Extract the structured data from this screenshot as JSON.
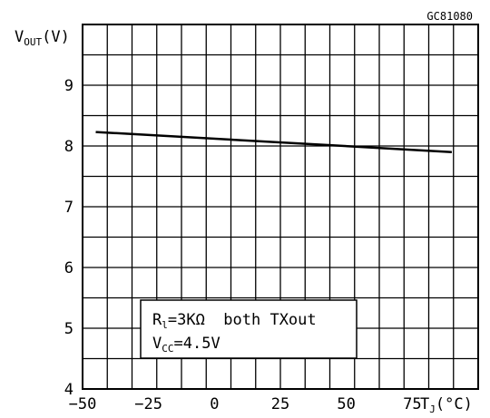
{
  "chart_data": {
    "type": "line",
    "code": "GC81080",
    "ylabel": {
      "main": "V",
      "sub": "OUT",
      "unit": "(V)"
    },
    "xlabel": {
      "main": "T",
      "sub": "J",
      "unit": "(°C)"
    },
    "xlim": [
      -50,
      100
    ],
    "ylim": [
      4,
      10
    ],
    "xticks": [
      -50,
      -25,
      0,
      25,
      50,
      75
    ],
    "yticks": [
      4,
      5,
      6,
      7,
      8,
      9
    ],
    "grid": true,
    "series": [
      {
        "x": [
          -45,
          90
        ],
        "values": [
          8.23,
          7.9
        ],
        "color": "#000000"
      }
    ],
    "annotation": {
      "line1": {
        "main": "R",
        "sub": "l",
        "rest": "=3KΩ  both TXout"
      },
      "line2": {
        "main": "V",
        "sub": "CC",
        "rest": "=4.5V"
      }
    }
  }
}
